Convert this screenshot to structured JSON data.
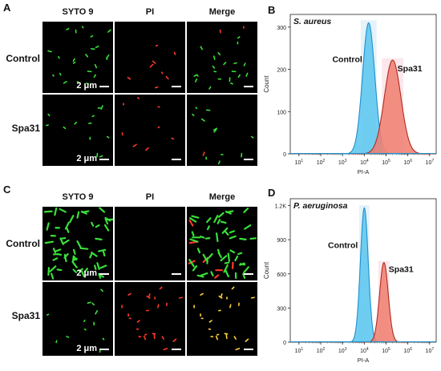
{
  "figure": {
    "panels": {
      "a": "A",
      "b": "B",
      "c": "C",
      "d": "D"
    },
    "micro_columns": [
      "SYTO 9",
      "PI",
      "Merge"
    ],
    "rows": {
      "control": "Control",
      "treated": "Spa31"
    },
    "scale_label": "2 μm",
    "colors": {
      "green": "#39e039",
      "red": "#ff3a2a",
      "yellow": "#ffd23a",
      "control_fill": "#59c6ee",
      "control_line": "#1f90cc",
      "treat_fill": "#f07c6e",
      "treat_line": "#b02b20",
      "halo": "#cfe8f6",
      "halo_red": "#f9d3dc"
    }
  },
  "chart_data": [
    {
      "type": "area",
      "title": "S. aureus",
      "xlabel": "PI-A",
      "ylabel": "Count",
      "x_scale": "log",
      "x_ticks": [
        "10^1",
        "10^2",
        "10^3",
        "10^4",
        "10^5",
        "10^6",
        "10^7"
      ],
      "y_ticks": [
        "0",
        "100",
        "200",
        "300"
      ],
      "ylim": [
        0,
        330
      ],
      "xlim_log10": [
        0.6,
        7.3
      ],
      "series": [
        {
          "name": "Control",
          "peak_log10": 4.2,
          "peak_count": 310,
          "spread": 0.28
        },
        {
          "name": "Spa31",
          "peak_log10": 5.3,
          "peak_count": 222,
          "spread": 0.38
        }
      ]
    },
    {
      "type": "area",
      "title": "P. aeruginosa",
      "xlabel": "PI-A",
      "ylabel": "Count",
      "x_scale": "log",
      "x_ticks": [
        "10^1",
        "10^2",
        "10^3",
        "10^4",
        "10^5",
        "10^6",
        "10^7"
      ],
      "y_ticks": [
        "0",
        "300",
        "600",
        "900",
        "1.2K"
      ],
      "ylim": [
        0,
        1260
      ],
      "xlim_log10": [
        0.6,
        7.3
      ],
      "series": [
        {
          "name": "Control",
          "peak_log10": 4.0,
          "peak_count": 1180,
          "spread": 0.18
        },
        {
          "name": "Spa31",
          "peak_log10": 4.9,
          "peak_count": 700,
          "spread": 0.2
        }
      ]
    }
  ]
}
